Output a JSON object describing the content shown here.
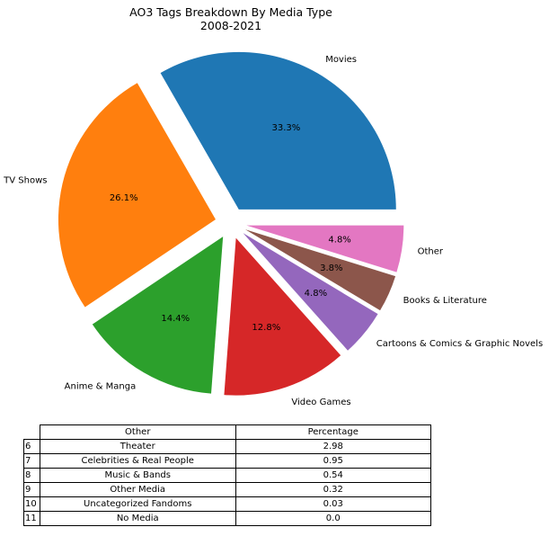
{
  "chart_data": {
    "type": "pie",
    "title": "AO3 Tags Breakdown By Media Type",
    "subtitle": "2008-2021",
    "slices": [
      {
        "label": "Movies",
        "value": 33.3,
        "pct_label": "33.3%",
        "color": "#1f77b4"
      },
      {
        "label": "TV Shows",
        "value": 26.1,
        "pct_label": "26.1%",
        "color": "#ff7f0e"
      },
      {
        "label": "Anime & Manga",
        "value": 14.4,
        "pct_label": "14.4%",
        "color": "#2ca02c"
      },
      {
        "label": "Video Games",
        "value": 12.8,
        "pct_label": "12.8%",
        "color": "#d62728"
      },
      {
        "label": "Cartoons & Comics & Graphic Novels",
        "value": 4.8,
        "pct_label": "4.8%",
        "color": "#9467bd"
      },
      {
        "label": "Books & Literature",
        "value": 3.8,
        "pct_label": "3.8%",
        "color": "#8c564b"
      },
      {
        "label": "Other",
        "value": 4.8,
        "pct_label": "4.8%",
        "color": "#e377c2"
      }
    ],
    "table": {
      "columns": [
        "Other",
        "Percentage"
      ],
      "rows": [
        {
          "index": "6",
          "name": "Theater",
          "pct": "2.98"
        },
        {
          "index": "7",
          "name": "Celebrities & Real People",
          "pct": "0.95"
        },
        {
          "index": "8",
          "name": "Music & Bands",
          "pct": "0.54"
        },
        {
          "index": "9",
          "name": "Other Media",
          "pct": "0.32"
        },
        {
          "index": "10",
          "name": "Uncategorized Fandoms",
          "pct": "0.03"
        },
        {
          "index": "11",
          "name": "No Media",
          "pct": "0.0"
        }
      ]
    }
  }
}
